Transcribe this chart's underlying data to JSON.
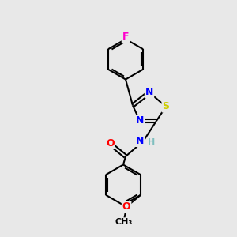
{
  "bg_color": "#e8e8e8",
  "bond_color": "#000000",
  "atom_colors": {
    "F": "#ff00cc",
    "N": "#0000ff",
    "S": "#cccc00",
    "O": "#ff0000",
    "H": "#7fbfbf",
    "C": "#000000"
  },
  "lw": 1.5,
  "font_size": 9,
  "fig_width": 3.0,
  "fig_height": 3.0,
  "dpi": 100,
  "xlim": [
    0,
    10
  ],
  "ylim": [
    0,
    10
  ]
}
